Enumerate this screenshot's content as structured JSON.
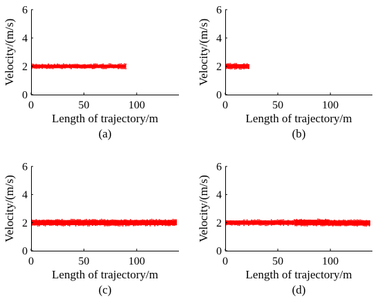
{
  "chart_data": [
    {
      "type": "scatter",
      "panel": "(a)",
      "xlabel": "Length of trajectory/m",
      "ylabel": "Velocity/(m/s)",
      "xlim": [
        0,
        140
      ],
      "ylim": [
        0,
        6
      ],
      "xticks": [
        "0",
        "50",
        "100"
      ],
      "yticks": [
        "0",
        "2",
        "4",
        "6"
      ],
      "grid": false,
      "color": "#ff0000",
      "segments": [
        {
          "x_start": 0,
          "x_end": 90,
          "v_min": 1.88,
          "v_max": 2.12
        }
      ]
    },
    {
      "type": "scatter",
      "panel": "(b)",
      "xlabel": "Length of trajectory/m",
      "ylabel": "Velocity/(m/s)",
      "xlim": [
        0,
        140
      ],
      "ylim": [
        0,
        6
      ],
      "xticks": [
        "0",
        "50",
        "100"
      ],
      "yticks": [
        "0",
        "2",
        "4",
        "6"
      ],
      "grid": false,
      "color": "#ff0000",
      "segments": [
        {
          "x_start": 0,
          "x_end": 23,
          "v_min": 1.85,
          "v_max": 2.15
        }
      ]
    },
    {
      "type": "scatter",
      "panel": "(c)",
      "xlabel": "Length of trajectory/m",
      "ylabel": "Velocity/(m/s)",
      "xlim": [
        0,
        140
      ],
      "ylim": [
        0,
        6
      ],
      "xticks": [
        "0",
        "50",
        "100"
      ],
      "yticks": [
        "0",
        "2",
        "4",
        "6"
      ],
      "grid": false,
      "color": "#ff0000",
      "segments": [
        {
          "x_start": 0,
          "x_end": 138,
          "v_min": 1.82,
          "v_max": 2.18
        }
      ]
    },
    {
      "type": "scatter",
      "panel": "(d)",
      "xlabel": "Length of trajectory/m",
      "ylabel": "Velocity/(m/s)",
      "xlim": [
        0,
        140
      ],
      "ylim": [
        0,
        6
      ],
      "xticks": [
        "0",
        "50",
        "100"
      ],
      "yticks": [
        "0",
        "2",
        "4",
        "6"
      ],
      "grid": false,
      "color": "#ff0000",
      "segments": [
        {
          "x_start": 0,
          "x_end": 66,
          "v_min": 1.85,
          "v_max": 2.15
        },
        {
          "x_start": 66,
          "x_end": 99,
          "v_min": 1.82,
          "v_max": 2.2
        },
        {
          "x_start": 99,
          "x_end": 138,
          "v_min": 1.8,
          "v_max": 2.15
        }
      ]
    }
  ]
}
